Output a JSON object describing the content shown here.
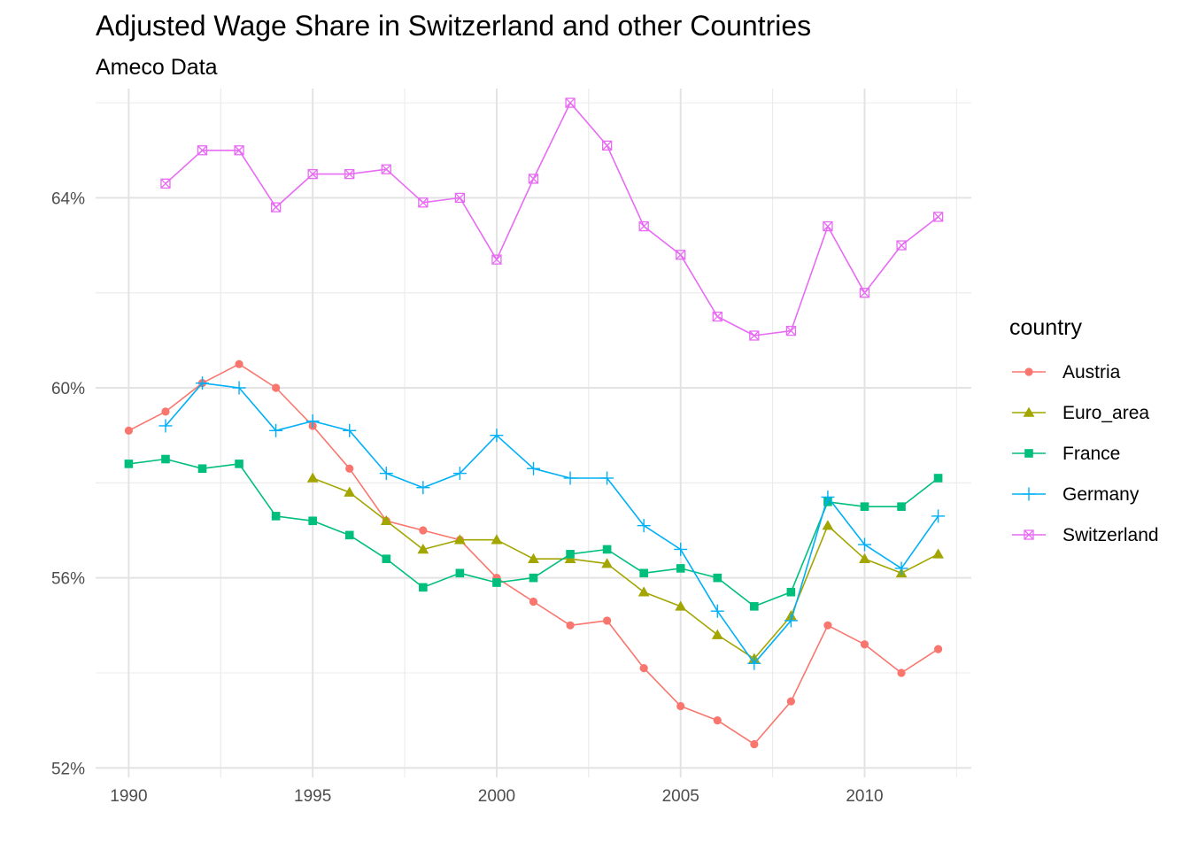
{
  "chart_data": {
    "type": "line",
    "title": "Adjusted Wage Share in Switzerland and other Countries",
    "subtitle": "Ameco Data",
    "xlabel": "",
    "ylabel": "",
    "xlim": [
      1989.1,
      2012.9
    ],
    "ylim": [
      51.8,
      66.3
    ],
    "x_ticks": [
      1990,
      1995,
      2000,
      2005,
      2010
    ],
    "y_ticks": [
      52,
      56,
      60,
      64
    ],
    "y_tick_labels": [
      "52%",
      "56%",
      "60%",
      "64%"
    ],
    "grid": true,
    "legend": {
      "title": "country",
      "position": "right"
    },
    "series": [
      {
        "name": "Austria",
        "color": "#F8766D",
        "marker": "circle",
        "x": [
          1990,
          1991,
          1992,
          1993,
          1994,
          1995,
          1996,
          1997,
          1998,
          1999,
          2000,
          2001,
          2002,
          2003,
          2004,
          2005,
          2006,
          2007,
          2008,
          2009,
          2010,
          2011,
          2012
        ],
        "values": [
          59.1,
          59.5,
          60.1,
          60.5,
          60.0,
          59.2,
          58.3,
          57.2,
          57.0,
          56.8,
          56.0,
          55.5,
          55.0,
          55.1,
          54.1,
          53.3,
          53.0,
          52.5,
          53.4,
          55.0,
          54.6,
          54.0,
          54.5
        ]
      },
      {
        "name": "Euro_area",
        "color": "#A3A500",
        "marker": "triangle",
        "x": [
          1995,
          1996,
          1997,
          1998,
          1999,
          2000,
          2001,
          2002,
          2003,
          2004,
          2005,
          2006,
          2007,
          2008,
          2009,
          2010,
          2011,
          2012
        ],
        "values": [
          58.1,
          57.8,
          57.2,
          56.6,
          56.8,
          56.8,
          56.4,
          56.4,
          56.3,
          55.7,
          55.4,
          54.8,
          54.3,
          55.2,
          57.1,
          56.4,
          56.1,
          56.5
        ]
      },
      {
        "name": "France",
        "color": "#00BF7D",
        "marker": "square",
        "x": [
          1990,
          1991,
          1992,
          1993,
          1994,
          1995,
          1996,
          1997,
          1998,
          1999,
          2000,
          2001,
          2002,
          2003,
          2004,
          2005,
          2006,
          2007,
          2008,
          2009,
          2010,
          2011,
          2012
        ],
        "values": [
          58.4,
          58.5,
          58.3,
          58.4,
          57.3,
          57.2,
          56.9,
          56.4,
          55.8,
          56.1,
          55.9,
          56.0,
          56.5,
          56.6,
          56.1,
          56.2,
          56.0,
          55.4,
          55.7,
          57.6,
          57.5,
          57.5,
          58.1
        ]
      },
      {
        "name": "Germany",
        "color": "#00B0F6",
        "marker": "plus",
        "x": [
          1991,
          1992,
          1993,
          1994,
          1995,
          1996,
          1997,
          1998,
          1999,
          2000,
          2001,
          2002,
          2003,
          2004,
          2005,
          2006,
          2007,
          2008,
          2009,
          2010,
          2011,
          2012
        ],
        "values": [
          59.2,
          60.1,
          60.0,
          59.1,
          59.3,
          59.1,
          58.2,
          57.9,
          58.2,
          59.0,
          58.3,
          58.1,
          58.1,
          57.1,
          56.6,
          55.3,
          54.2,
          55.1,
          57.7,
          56.7,
          56.2,
          57.3
        ]
      },
      {
        "name": "Switzerland",
        "color": "#E76BF3",
        "marker": "square-cross",
        "x": [
          1991,
          1992,
          1993,
          1994,
          1995,
          1996,
          1997,
          1998,
          1999,
          2000,
          2001,
          2002,
          2003,
          2004,
          2005,
          2006,
          2007,
          2008,
          2009,
          2010,
          2011,
          2012
        ],
        "values": [
          64.3,
          65.0,
          65.0,
          63.8,
          64.5,
          64.5,
          64.6,
          63.9,
          64.0,
          62.7,
          64.4,
          66.0,
          65.1,
          63.4,
          62.8,
          61.5,
          61.1,
          61.2,
          63.4,
          62.0,
          63.0,
          63.6
        ]
      }
    ]
  }
}
